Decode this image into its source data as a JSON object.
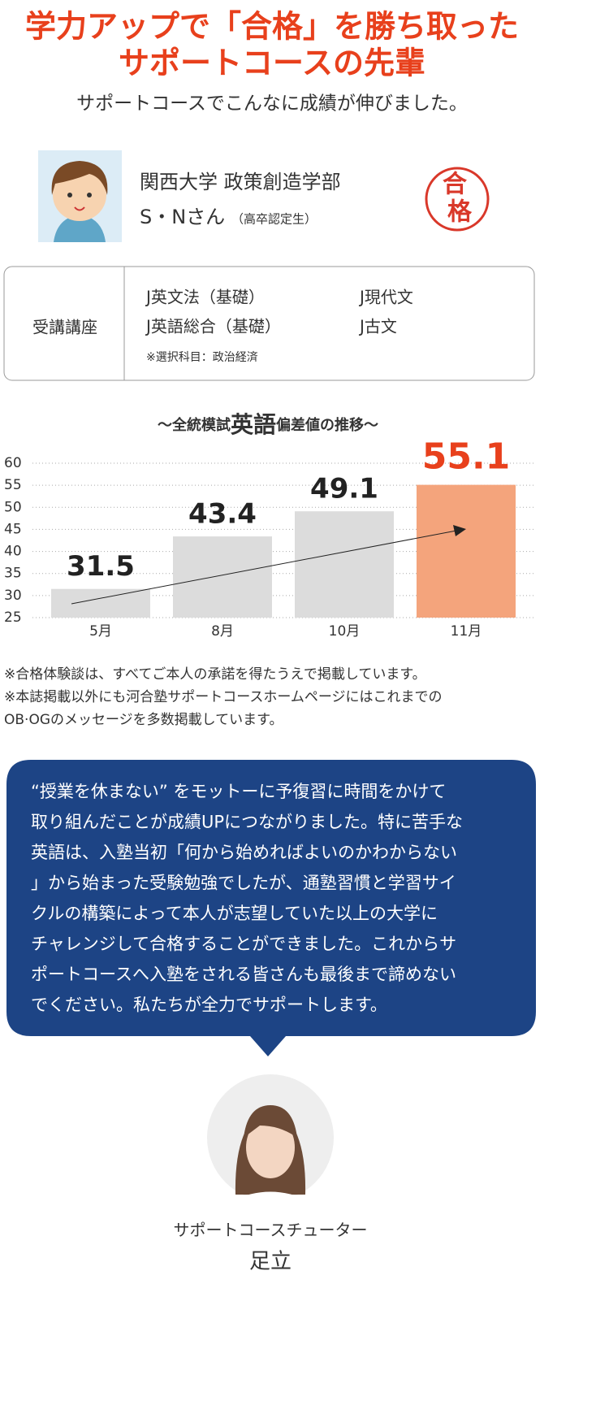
{
  "header": {
    "title_line1": "学力アップで「合格」を勝ち取った",
    "title_line2": "サポートコースの先輩",
    "subtitle": "サポートコースでこんなに成績が伸びました。"
  },
  "student": {
    "university": "関西大学 政策創造学部",
    "name": "S・Nさん",
    "note": "（高卒認定生）",
    "stamp": [
      "合",
      "格"
    ]
  },
  "courses": {
    "label": "受講講座",
    "items": [
      "J英文法（基礎）",
      "J現代文",
      "J英語総合（基礎）",
      "J古文"
    ],
    "note": "※選択科目：政治経済"
  },
  "chart_data": {
    "type": "bar",
    "title_parts": [
      "～全統模試",
      "英語",
      "偏差値の推移～"
    ],
    "categories": [
      "5月",
      "8月",
      "10月",
      "11月"
    ],
    "values": [
      31.5,
      43.4,
      49.1,
      55.1
    ],
    "colors": [
      "#dcdcdc",
      "#dcdcdc",
      "#dcdcdc",
      "#f4a47c"
    ],
    "ylim": [
      25,
      60
    ],
    "yticks": [
      25,
      30,
      35,
      40,
      45,
      50,
      55,
      60
    ],
    "grid": true
  },
  "notes": [
    "※合格体験談は、すべてご本人の承諾を得たうえで掲載しています。",
    "※本誌掲載以外にも河合塾サポートコースホームページにはこれまでの",
    "OB·OGのメッセージを多数掲載しています。"
  ],
  "message": {
    "lines": [
      "“授業を休まない” をモットーに予復習に時間をかけて",
      "取り組んだことが成績UPにつながりました。特に苦手な",
      "英語は、入塾当初「何から始めればよいのかわからない",
      "」から始まった受験勉強でしたが、通塾習慣と学習サイ",
      "クルの構築によって本人が志望していた以上の大学に",
      "チャレンジして合格することができました。これからサ",
      "ポートコースへ入塾をされる皆さんも最後まで諦めない",
      "でください。私たちが全力でサポートします。"
    ]
  },
  "tutor": {
    "role": "サポートコースチューター",
    "name": "足立"
  }
}
